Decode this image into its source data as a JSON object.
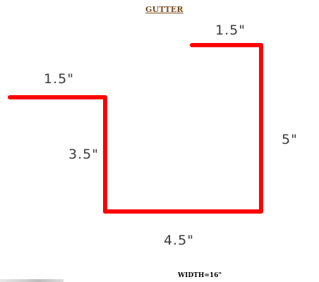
{
  "title": "GUTTER",
  "dimensions": {
    "back_flange": "1.5\"",
    "back_height": "3.5\"",
    "bottom": "4.5\"",
    "front_height": "5\"",
    "front_lip": "1.5\""
  },
  "width_label": "WIDTH=16\"",
  "colors": {
    "profile_line": "#ff0000",
    "title": "#7a4a1e",
    "dimension_text": "#3a3a3a"
  }
}
